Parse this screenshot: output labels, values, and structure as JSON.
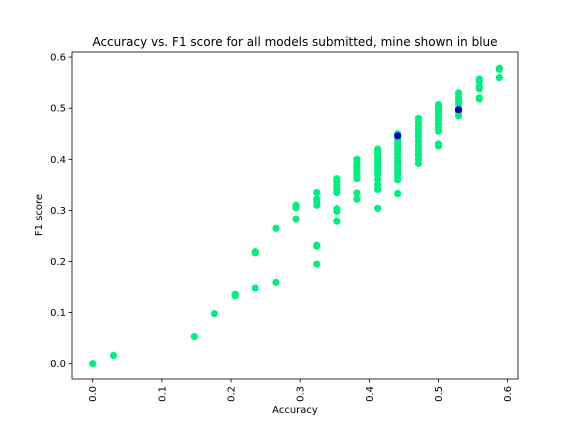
{
  "chart_data": {
    "type": "scatter",
    "title": "Accuracy vs. F1 score for all models submitted, mine shown in blue",
    "xlabel": "Accuracy",
    "ylabel": "F1 score",
    "xlim": [
      -0.03,
      0.615
    ],
    "ylim": [
      -0.03,
      0.61
    ],
    "x_ticks": [
      {
        "value": 0.0,
        "label": "0.0"
      },
      {
        "value": 0.1,
        "label": "0.1"
      },
      {
        "value": 0.2,
        "label": "0.2"
      },
      {
        "value": 0.3,
        "label": "0.3"
      },
      {
        "value": 0.4,
        "label": "0.4"
      },
      {
        "value": 0.5,
        "label": "0.5"
      },
      {
        "value": 0.6,
        "label": "0.6"
      }
    ],
    "y_ticks": [
      {
        "value": 0.0,
        "label": "0.0"
      },
      {
        "value": 0.1,
        "label": "0.1"
      },
      {
        "value": 0.2,
        "label": "0.2"
      },
      {
        "value": 0.3,
        "label": "0.3"
      },
      {
        "value": 0.4,
        "label": "0.4"
      },
      {
        "value": 0.5,
        "label": "0.5"
      },
      {
        "value": 0.6,
        "label": "0.6"
      }
    ],
    "x_tick_rotation": 90,
    "grid": false,
    "series": [
      {
        "color": "#00f07e",
        "points": [
          [
            0.0,
            0.0
          ],
          [
            0.03,
            0.016
          ],
          [
            0.147,
            0.053
          ],
          [
            0.176,
            0.098
          ],
          [
            0.206,
            0.133
          ],
          [
            0.206,
            0.136
          ],
          [
            0.235,
            0.148
          ],
          [
            0.235,
            0.217
          ],
          [
            0.235,
            0.219
          ],
          [
            0.265,
            0.159
          ],
          [
            0.265,
            0.265
          ],
          [
            0.294,
            0.283
          ],
          [
            0.294,
            0.305
          ],
          [
            0.294,
            0.31
          ],
          [
            0.324,
            0.195
          ],
          [
            0.324,
            0.23
          ],
          [
            0.324,
            0.232
          ],
          [
            0.324,
            0.31
          ],
          [
            0.324,
            0.316
          ],
          [
            0.324,
            0.322
          ],
          [
            0.324,
            0.335
          ],
          [
            0.353,
            0.279
          ],
          [
            0.353,
            0.298
          ],
          [
            0.353,
            0.303
          ],
          [
            0.353,
            0.335
          ],
          [
            0.353,
            0.342
          ],
          [
            0.353,
            0.35
          ],
          [
            0.353,
            0.356
          ],
          [
            0.353,
            0.362
          ],
          [
            0.382,
            0.322
          ],
          [
            0.382,
            0.334
          ],
          [
            0.382,
            0.362
          ],
          [
            0.382,
            0.368
          ],
          [
            0.382,
            0.374
          ],
          [
            0.382,
            0.38
          ],
          [
            0.382,
            0.386
          ],
          [
            0.382,
            0.392
          ],
          [
            0.382,
            0.4
          ],
          [
            0.412,
            0.304
          ],
          [
            0.412,
            0.341
          ],
          [
            0.412,
            0.35
          ],
          [
            0.412,
            0.36
          ],
          [
            0.412,
            0.37
          ],
          [
            0.412,
            0.378
          ],
          [
            0.412,
            0.385
          ],
          [
            0.412,
            0.392
          ],
          [
            0.412,
            0.398
          ],
          [
            0.412,
            0.405
          ],
          [
            0.412,
            0.41
          ],
          [
            0.412,
            0.416
          ],
          [
            0.412,
            0.42
          ],
          [
            0.441,
            0.333
          ],
          [
            0.441,
            0.36
          ],
          [
            0.441,
            0.368
          ],
          [
            0.441,
            0.375
          ],
          [
            0.441,
            0.382
          ],
          [
            0.441,
            0.39
          ],
          [
            0.441,
            0.396
          ],
          [
            0.441,
            0.402
          ],
          [
            0.441,
            0.41
          ],
          [
            0.441,
            0.418
          ],
          [
            0.441,
            0.424
          ],
          [
            0.441,
            0.43
          ],
          [
            0.441,
            0.436
          ],
          [
            0.441,
            0.442
          ],
          [
            0.441,
            0.45
          ],
          [
            0.471,
            0.392
          ],
          [
            0.471,
            0.4
          ],
          [
            0.471,
            0.408
          ],
          [
            0.471,
            0.414
          ],
          [
            0.471,
            0.42
          ],
          [
            0.471,
            0.428
          ],
          [
            0.471,
            0.436
          ],
          [
            0.471,
            0.444
          ],
          [
            0.471,
            0.45
          ],
          [
            0.471,
            0.458
          ],
          [
            0.471,
            0.465
          ],
          [
            0.471,
            0.472
          ],
          [
            0.471,
            0.48
          ],
          [
            0.5,
            0.426
          ],
          [
            0.5,
            0.43
          ],
          [
            0.5,
            0.455
          ],
          [
            0.5,
            0.462
          ],
          [
            0.5,
            0.47
          ],
          [
            0.5,
            0.478
          ],
          [
            0.5,
            0.486
          ],
          [
            0.5,
            0.493
          ],
          [
            0.5,
            0.5
          ],
          [
            0.5,
            0.507
          ],
          [
            0.529,
            0.485
          ],
          [
            0.529,
            0.493
          ],
          [
            0.529,
            0.5
          ],
          [
            0.529,
            0.508
          ],
          [
            0.529,
            0.515
          ],
          [
            0.529,
            0.522
          ],
          [
            0.529,
            0.53
          ],
          [
            0.559,
            0.518
          ],
          [
            0.559,
            0.52
          ],
          [
            0.559,
            0.538
          ],
          [
            0.559,
            0.542
          ],
          [
            0.559,
            0.552
          ],
          [
            0.559,
            0.557
          ],
          [
            0.588,
            0.56
          ],
          [
            0.588,
            0.576
          ],
          [
            0.588,
            0.578
          ]
        ]
      },
      {
        "color": "#0000cc",
        "points": [
          [
            0.441,
            0.446
          ],
          [
            0.529,
            0.497
          ]
        ]
      }
    ]
  }
}
